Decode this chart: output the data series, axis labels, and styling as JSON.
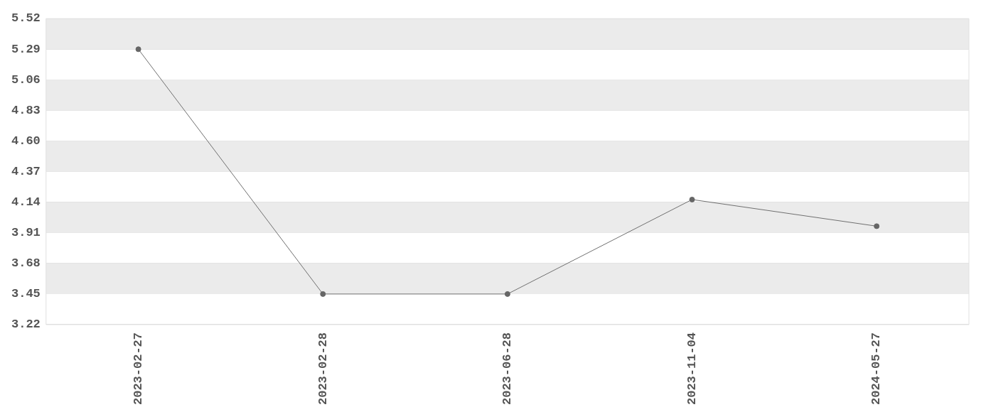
{
  "chart_data": {
    "type": "line",
    "categories": [
      "2023-02-27",
      "2023-02-28",
      "2023-06-28",
      "2023-11-04",
      "2024-05-27"
    ],
    "series": [
      {
        "color": "#707070",
        "values": [
          5.29,
          3.45,
          3.45,
          4.16,
          3.96
        ]
      }
    ],
    "ylim": [
      3.22,
      5.52
    ],
    "yticks": [
      3.22,
      3.45,
      3.68,
      3.91,
      4.14,
      4.37,
      {
        "value": 4.6,
        "label": "4.60"
      },
      4.83,
      5.06,
      5.29,
      5.52
    ],
    "grid": true,
    "legend": false,
    "marker": "circle",
    "line_style": "solid"
  }
}
